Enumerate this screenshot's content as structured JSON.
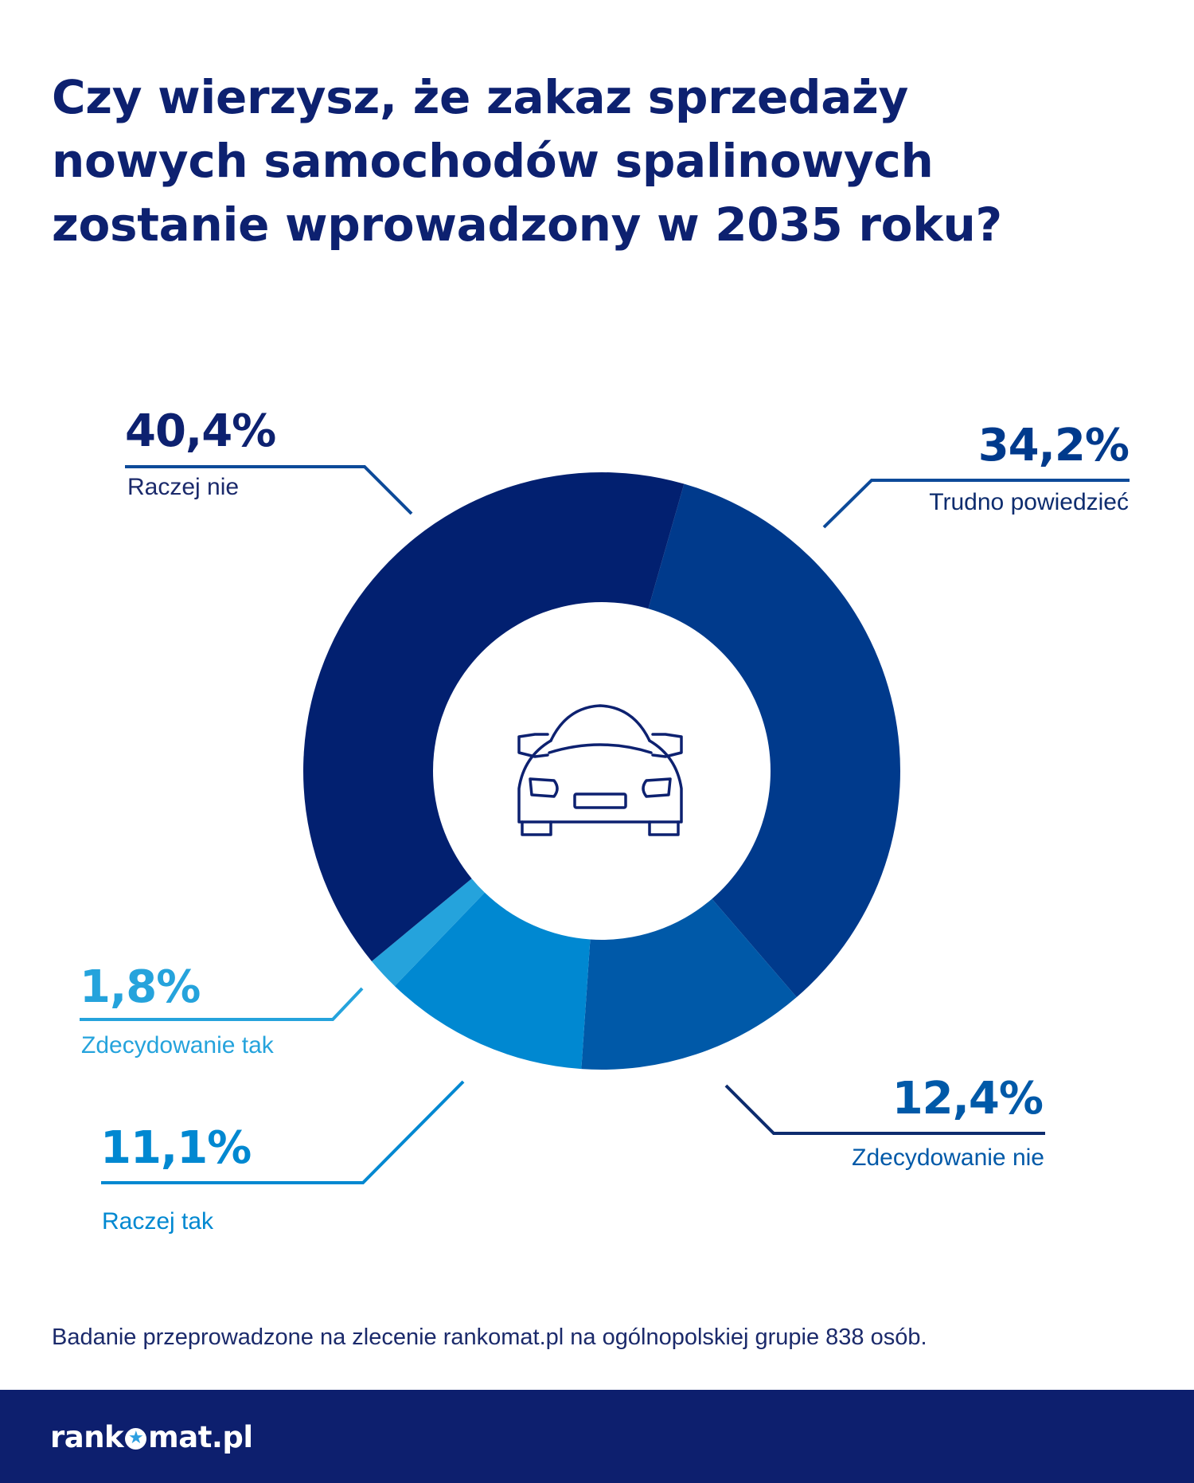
{
  "title_lines": [
    "Czy wierzysz, że zakaz sprzedaży",
    "nowych samochodów spalinowych",
    "zostanie wprowadzony w 2035 roku?"
  ],
  "chart_data": {
    "type": "pie",
    "variant": "donut",
    "title": "Czy wierzysz, że zakaz sprzedaży nowych samochodów spalinowych zostanie wprowadzony w 2035 roku?",
    "unit": "%",
    "slices": [
      {
        "label": "Trudno powiedzieć",
        "value": 34.2,
        "value_label": "34,2%",
        "color": "#003a8c"
      },
      {
        "label": "Zdecydowanie nie",
        "value": 12.4,
        "value_label": "12,4%",
        "color": "#0059a8"
      },
      {
        "label": "Raczej tak",
        "value": 11.1,
        "value_label": "11,1%",
        "color": "#0088d1"
      },
      {
        "label": "Zdecydowanie tak",
        "value": 1.8,
        "value_label": "1,8%",
        "color": "#25a3dc"
      },
      {
        "label": "Raczej nie",
        "value": 40.4,
        "value_label": "40,4%",
        "color": "#022070"
      }
    ],
    "center_icon": "car-icon"
  },
  "footer": {
    "note": "Badanie przeprowadzone na zlecenie rankomat.pl na ogólnopolskiej grupie 838 osób.",
    "logo_left": "rank",
    "logo_right": "mat.pl",
    "logo_star": "★"
  },
  "colors": {
    "title": "#0d2170",
    "footer_bar": "#0d1f6e",
    "car_stroke": "#0d2170"
  }
}
